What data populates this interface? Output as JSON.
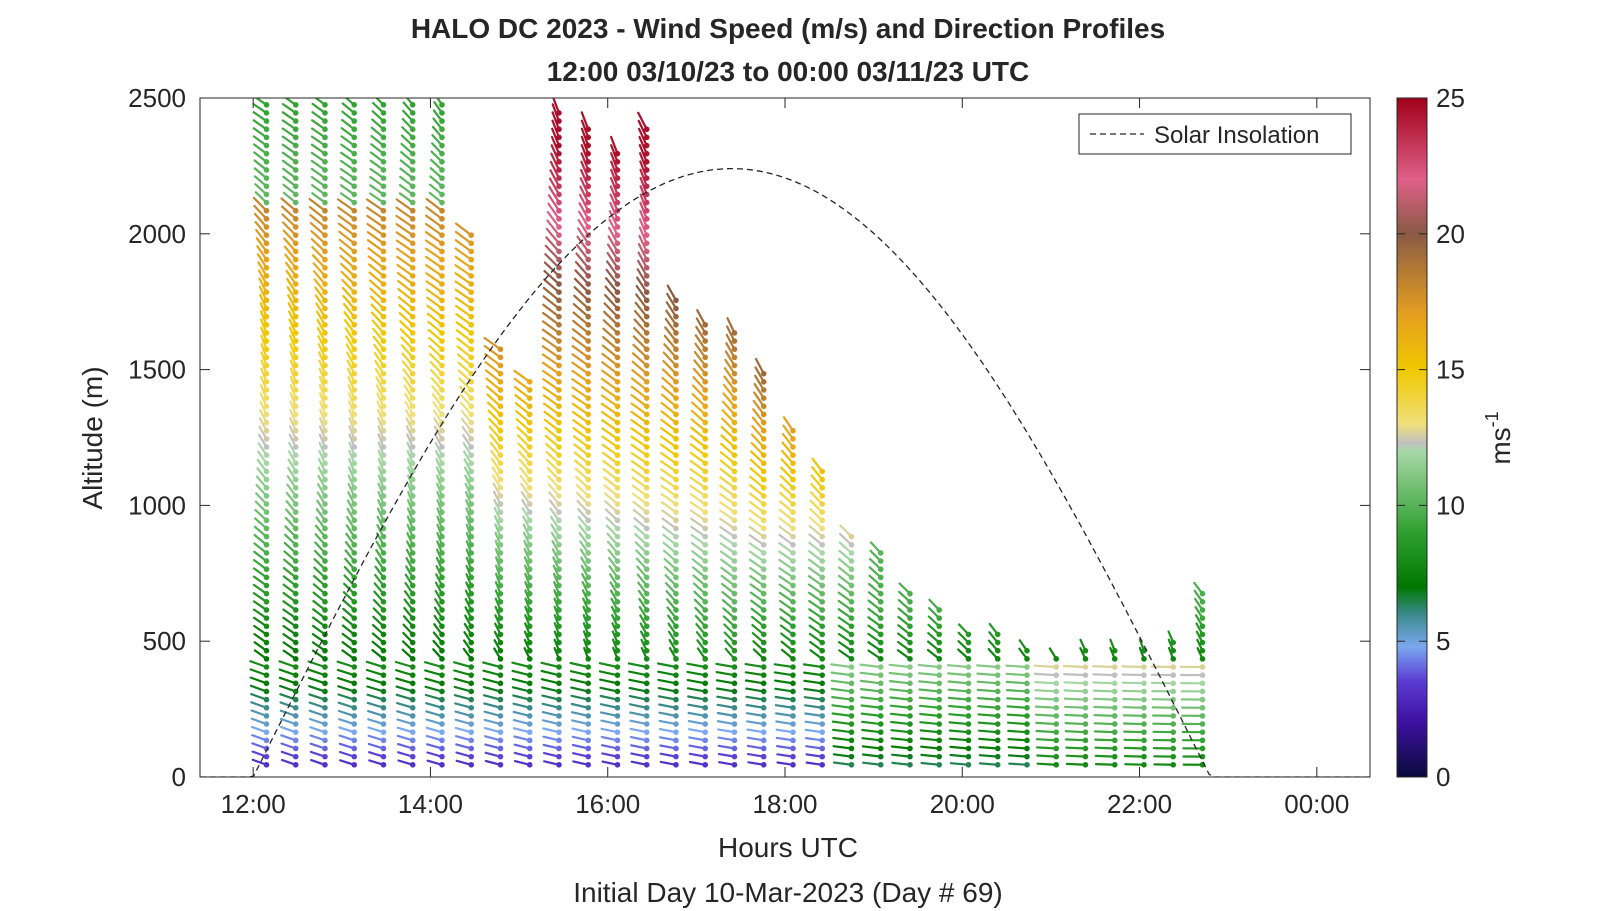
{
  "chart_data": {
    "type": "wind-barb-profile",
    "title": "HALO DC 2023 - Wind Speed (m/s) and Direction Profiles",
    "subtitle": "12:00 03/10/23 to 00:00 03/11/23  UTC",
    "xlabel": "Hours UTC",
    "ylabel": "Altitude (m)",
    "footer": "Initial Day 10-Mar-2023 (Day # 69)",
    "xlim": [
      11.4,
      24.6
    ],
    "ylim": [
      0,
      2500
    ],
    "x_ticks": [
      12,
      14,
      16,
      18,
      20,
      22,
      24
    ],
    "x_tick_labels": [
      "12:00",
      "14:00",
      "16:00",
      "18:00",
      "20:00",
      "22:00",
      "00:00"
    ],
    "y_ticks": [
      0,
      500,
      1000,
      1500,
      2000,
      2500
    ],
    "y_tick_labels": [
      "0",
      "500",
      "1000",
      "1500",
      "2000",
      "2500"
    ],
    "colorbar": {
      "range": [
        0,
        25
      ],
      "ticks": [
        0,
        5,
        10,
        15,
        20,
        25
      ],
      "tick_labels": [
        "0",
        "5",
        "10",
        "15",
        "20",
        "25"
      ],
      "label": "ms",
      "label_exponent": "-1",
      "stops": [
        {
          "v": 0,
          "c": "#0a0a3c"
        },
        {
          "v": 2,
          "c": "#3c10a0"
        },
        {
          "v": 3.5,
          "c": "#5a3ad2"
        },
        {
          "v": 4.8,
          "c": "#7aa8f0"
        },
        {
          "v": 6,
          "c": "#3a8a8a"
        },
        {
          "v": 7,
          "c": "#007800"
        },
        {
          "v": 9,
          "c": "#2fa02f"
        },
        {
          "v": 12,
          "c": "#a8d8a8"
        },
        {
          "v": 12.3,
          "c": "#c0c0c0"
        },
        {
          "v": 13,
          "c": "#f0e07a"
        },
        {
          "v": 15,
          "c": "#f0c800"
        },
        {
          "v": 17,
          "c": "#e6a020"
        },
        {
          "v": 20,
          "c": "#8a5a44"
        },
        {
          "v": 22,
          "c": "#e0608a"
        },
        {
          "v": 25,
          "c": "#a00018"
        }
      ]
    },
    "legend": {
      "label": "Solar Insolation",
      "position": "top-right",
      "line_style": "dashed",
      "color": "#262626"
    },
    "solar_insolation": {
      "rise_hour": 12.0,
      "set_hour": 22.8,
      "peak_altitude": 2240
    },
    "profile_times": [
      12.15,
      12.48,
      12.81,
      13.14,
      13.47,
      13.8,
      14.13,
      14.46,
      14.79,
      15.12,
      15.45,
      15.78,
      16.11,
      16.44,
      16.77,
      17.1,
      17.43,
      17.76,
      18.09,
      18.42,
      18.75,
      19.08,
      19.41,
      19.74,
      20.07,
      20.4,
      20.73,
      21.06,
      21.39,
      21.72,
      22.05,
      22.38,
      22.71
    ],
    "profile_tops": [
      2500,
      2500,
      2500,
      2500,
      2500,
      2500,
      2500,
      2000,
      1600,
      1480,
      2450,
      2400,
      2320,
      2390,
      1780,
      1690,
      1650,
      1490,
      1300,
      1150,
      900,
      830,
      680,
      620,
      550,
      550,
      470,
      450,
      470,
      470,
      470,
      500,
      690
    ],
    "gate_spacing_m": 30
  }
}
